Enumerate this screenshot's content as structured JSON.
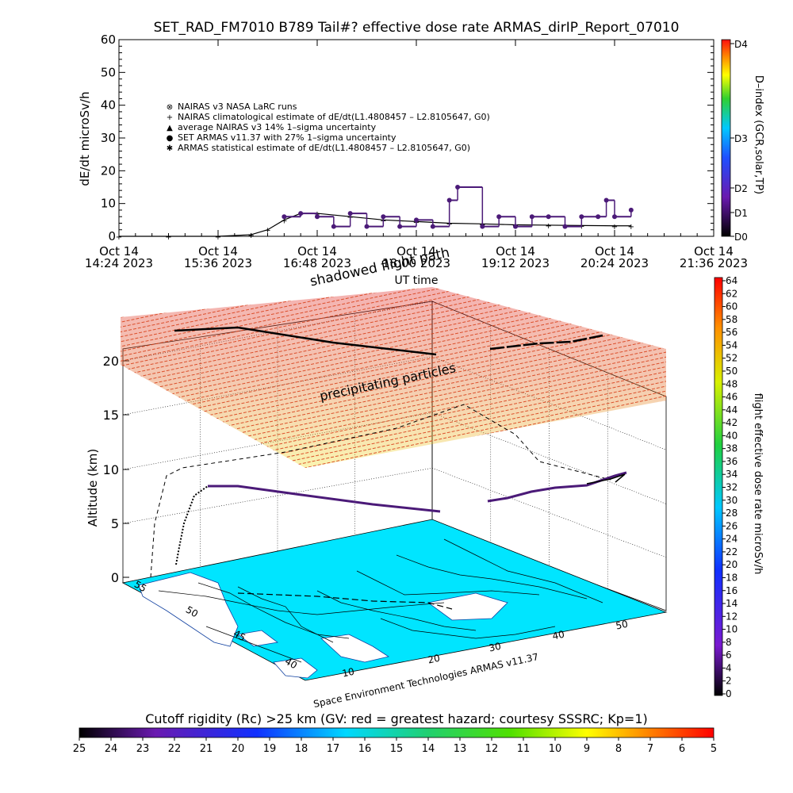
{
  "title": "SET_RAD_FM7010  B789 Tail#? effective dose rate ARMAS_dirIP_Report_07010",
  "top_chart": {
    "ylabel": "dE/dt microSv/h",
    "yticks": [
      "0",
      "10",
      "20",
      "30",
      "40",
      "50",
      "60"
    ],
    "xlabel": "UT time",
    "xticks": [
      {
        "day": "Oct 14",
        "time": "14:24 2023"
      },
      {
        "day": "Oct 14",
        "time": "15:36 2023"
      },
      {
        "day": "Oct 14",
        "time": "16:48 2023"
      },
      {
        "day": "Oct 14",
        "time": "18:00 2023"
      },
      {
        "day": "Oct 14",
        "time": "19:12 2023"
      },
      {
        "day": "Oct 14",
        "time": "20:24 2023"
      },
      {
        "day": "Oct 14",
        "time": "21:36 2023"
      }
    ],
    "legend": [
      {
        "symbol": "⊗",
        "label": "NAIRAS v3 NASA LaRC runs"
      },
      {
        "symbol": "+",
        "label": "NAIRAS climatological estimate of dE/dt(L1.4808457 – L2.8105647, G0)"
      },
      {
        "symbol": "▲",
        "label": "average NAIRAS v3 14% 1–sigma uncertainty"
      },
      {
        "symbol": "●",
        "label": "SET ARMAS v11.37 with 27% 1–sigma uncertainty",
        "color": "#2222dd"
      },
      {
        "symbol": "✱",
        "label": "ARMAS statistical estimate of dE/dt(L1.4808457 – L2.8105647, G0)"
      }
    ],
    "dindex_label": "D–index (GCR,solar,TP)",
    "dindex_ticks": [
      "D0",
      "D1",
      "D2",
      "D3",
      "D4"
    ],
    "overlay_text": "shadowed flight path"
  },
  "chart_data": {
    "type": "scatter",
    "title": "SET_RAD_FM7010  B789 Tail#? effective dose rate ARMAS_dirIP_Report_07010",
    "xlabel": "UT time",
    "ylabel": "dE/dt microSv/h",
    "ylim": [
      0,
      60
    ],
    "xlim": [
      "14:24",
      "21:36"
    ],
    "series": [
      {
        "name": "NAIRAS climatological estimate of dE/dt(L1.4808457 – L2.8105647, G0)",
        "x": [
          "14:24",
          "15:00",
          "15:36",
          "16:00",
          "16:12",
          "16:24",
          "16:36",
          "16:48",
          "17:12",
          "17:36",
          "18:00",
          "18:24",
          "18:48",
          "19:12",
          "19:36",
          "20:00",
          "20:24",
          "20:36"
        ],
        "y": [
          0,
          0,
          0,
          0.5,
          2,
          5,
          7,
          7,
          6,
          5,
          4.5,
          4,
          3.8,
          3.5,
          3.4,
          3.3,
          3.2,
          3.2
        ]
      },
      {
        "name": "SET ARMAS v11.37 with 27% 1–sigma uncertainty",
        "x": [
          "16:24",
          "16:36",
          "16:48",
          "17:00",
          "17:12",
          "17:24",
          "17:36",
          "17:48",
          "18:00",
          "18:12",
          "18:24",
          "18:30",
          "18:48",
          "19:00",
          "19:12",
          "19:24",
          "19:36",
          "19:48",
          "20:00",
          "20:12",
          "20:18",
          "20:24",
          "20:36"
        ],
        "y": [
          6,
          7,
          6,
          3,
          7,
          3,
          6,
          3,
          5,
          3,
          11,
          15,
          3,
          6,
          3,
          6,
          6,
          3,
          6,
          6,
          11,
          6,
          8
        ]
      }
    ]
  },
  "scene": {
    "ylabel": "Altitude (km)",
    "altitude_ticks": [
      "0",
      "5",
      "10",
      "15",
      "20"
    ],
    "precip_label": "precipitating particles",
    "lon_ticks": [
      "10",
      "20",
      "30",
      "40",
      "50"
    ],
    "lat_ticks": [
      "40",
      "45",
      "50",
      "55"
    ],
    "credit": "Space Environment Technologies ARMAS v11.37"
  },
  "right_colorbar": {
    "label": "flight effective dose rate microSv/h",
    "ticks": [
      "0",
      "2",
      "4",
      "6",
      "8",
      "10",
      "12",
      "14",
      "16",
      "18",
      "20",
      "22",
      "24",
      "26",
      "28",
      "30",
      "32",
      "34",
      "36",
      "38",
      "40",
      "42",
      "44",
      "46",
      "48",
      "50",
      "52",
      "54",
      "56",
      "58",
      "60",
      "62",
      "64"
    ]
  },
  "bottom_colorbar": {
    "title": "Cutoff rigidity (Rc) >25 km (GV: red = greatest hazard; courtesy SSSRC; Kp=1)",
    "ticks": [
      "25",
      "24",
      "23",
      "22",
      "21",
      "20",
      "19",
      "18",
      "17",
      "16",
      "15",
      "14",
      "13",
      "12",
      "11",
      "10",
      "9",
      "8",
      "7",
      "6",
      "5"
    ]
  },
  "colors": {
    "dose_purple": "#4b1a78",
    "ocean": "#00e5ff",
    "land": "#ffffff",
    "symbol_blue": "#2222dd"
  }
}
